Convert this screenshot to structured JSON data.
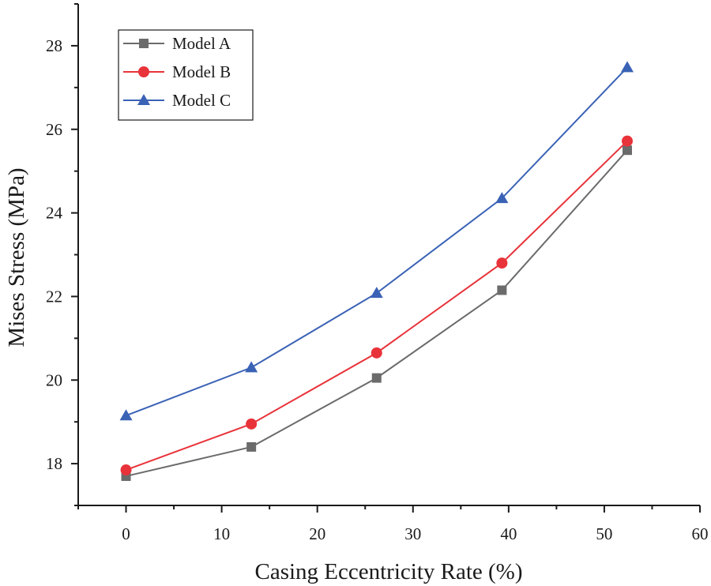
{
  "chart_data": {
    "type": "line",
    "title": "",
    "xlabel": "Casing Eccentricity Rate (%)",
    "ylabel": "Mises Stress (MPa)",
    "xlim": [
      -5,
      60
    ],
    "ylim": [
      17,
      29
    ],
    "xticks": [
      0,
      10,
      20,
      30,
      40,
      50,
      60
    ],
    "yticks": [
      18,
      20,
      22,
      24,
      26,
      28
    ],
    "xtick_labels": [
      "0",
      "10",
      "20",
      "30",
      "40",
      "50",
      "60"
    ],
    "ytick_labels": [
      "18",
      "20",
      "22",
      "24",
      "26",
      "28"
    ],
    "legend_position": "top-left",
    "x": [
      0,
      13.1,
      26.2,
      39.3,
      52.4
    ],
    "series": [
      {
        "name": "Model A",
        "marker": "square",
        "color": "#6b6b6b",
        "values": [
          17.7,
          18.4,
          20.05,
          22.15,
          25.5
        ]
      },
      {
        "name": "Model B",
        "marker": "circle",
        "color": "#e8333a",
        "values": [
          17.85,
          18.95,
          20.65,
          22.8,
          25.72
        ]
      },
      {
        "name": "Model C",
        "marker": "triangle",
        "color": "#3a62b5",
        "values": [
          19.15,
          20.3,
          22.08,
          24.35,
          27.48
        ]
      }
    ]
  }
}
